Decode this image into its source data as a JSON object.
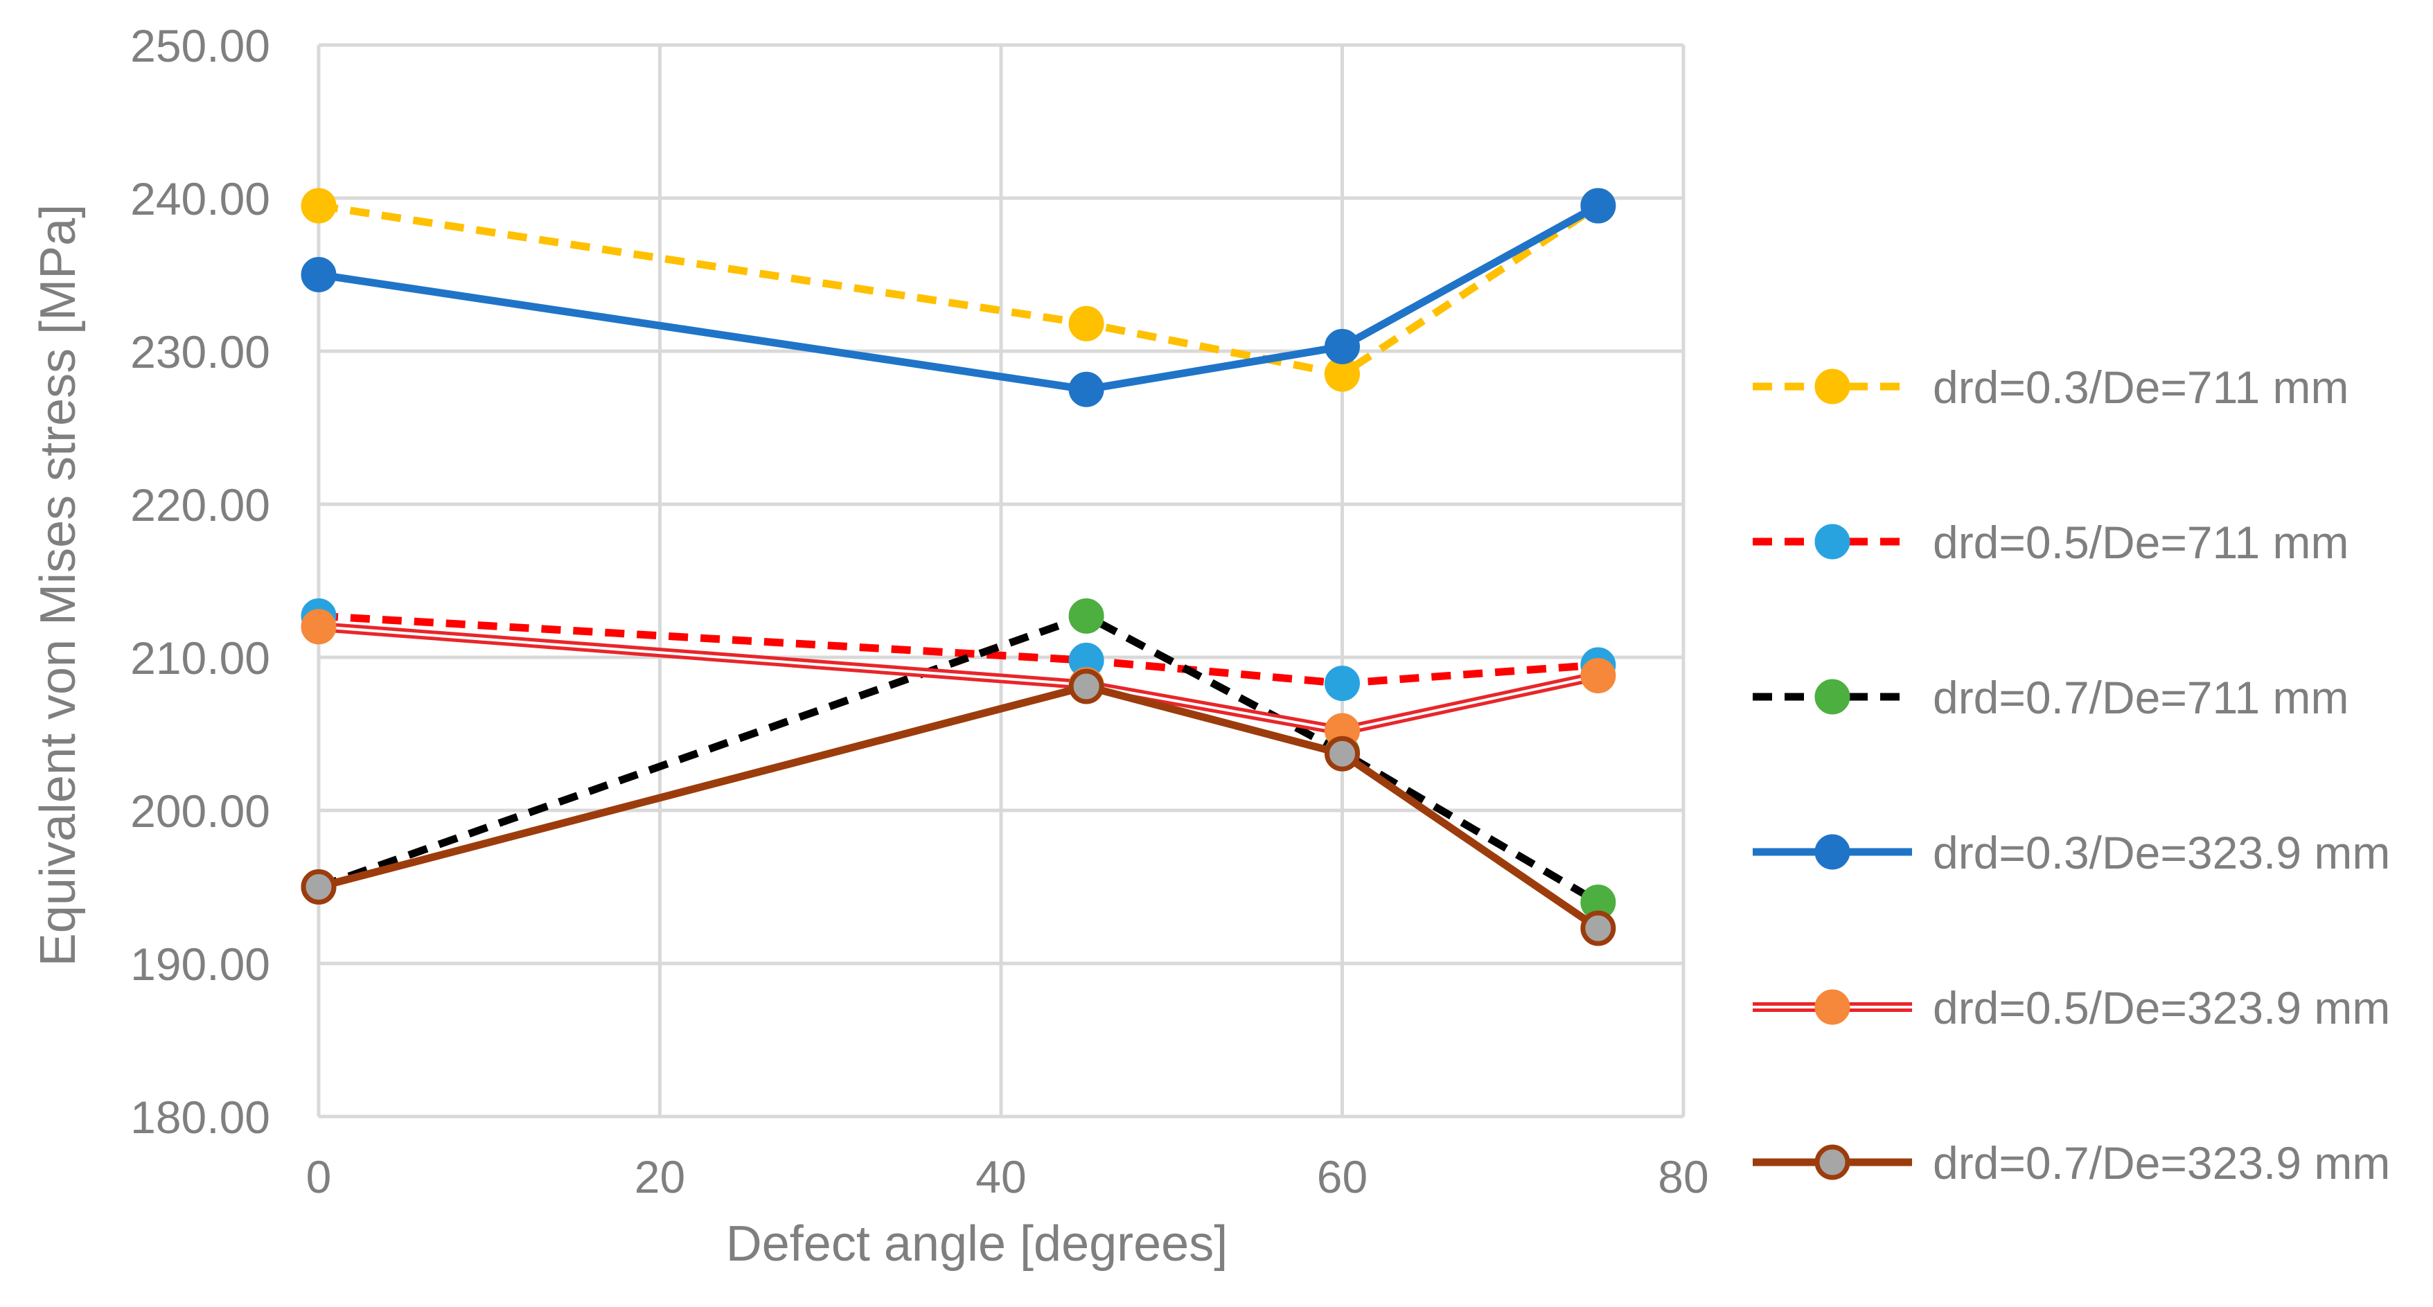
{
  "chart_data": {
    "type": "line",
    "title": "",
    "xlabel": "Defect angle [degrees]",
    "ylabel": "Equivalent von Mises stress [MPa]",
    "xlim": [
      0,
      80
    ],
    "ylim": [
      180,
      250
    ],
    "x_ticks": [
      "0",
      "20",
      "40",
      "60",
      "80"
    ],
    "y_ticks": [
      "180.00",
      "190.00",
      "200.00",
      "210.00",
      "220.00",
      "230.00",
      "240.00",
      "250.00"
    ],
    "grid": true,
    "legend_position": "right",
    "x": [
      0,
      45,
      60,
      75
    ],
    "series": [
      {
        "name": "drd=0.3/De=711 mm",
        "values": [
          239.5,
          231.8,
          228.5,
          239.5
        ],
        "line_color": "#ffc000",
        "marker_color": "#ffc000",
        "marker_edge": "#ffc000",
        "style": "dashed"
      },
      {
        "name": "drd=0.5/De=711 mm",
        "values": [
          212.7,
          209.8,
          208.3,
          209.5
        ],
        "line_color": "#ff0000",
        "marker_color": "#29a3e0",
        "marker_edge": "#29a3e0",
        "style": "dashed"
      },
      {
        "name": "drd=0.7/De=711 mm",
        "values": [
          195.0,
          212.7,
          203.8,
          194.0
        ],
        "line_color": "#000000",
        "marker_color": "#4caf3f",
        "marker_edge": "#4caf3f",
        "style": "dashed"
      },
      {
        "name": "drd=0.3/De=323.9 mm",
        "values": [
          235.0,
          227.5,
          230.3,
          239.5
        ],
        "line_color": "#1f74c8",
        "marker_color": "#1f74c8",
        "marker_edge": "#1f74c8",
        "style": "solid"
      },
      {
        "name": "drd=0.5/De=323.9 mm",
        "values": [
          212.0,
          208.2,
          205.2,
          208.8
        ],
        "line_color": "#e8262a",
        "marker_color": "#f5883a",
        "marker_edge": "#f5883a",
        "style": "double"
      },
      {
        "name": "drd=0.7/De=323.9 mm",
        "values": [
          195.0,
          208.1,
          203.7,
          192.3
        ],
        "line_color": "#9c3c0c",
        "marker_color": "#a6a6a6",
        "marker_edge": "#9c3c0c",
        "style": "solid"
      }
    ]
  }
}
